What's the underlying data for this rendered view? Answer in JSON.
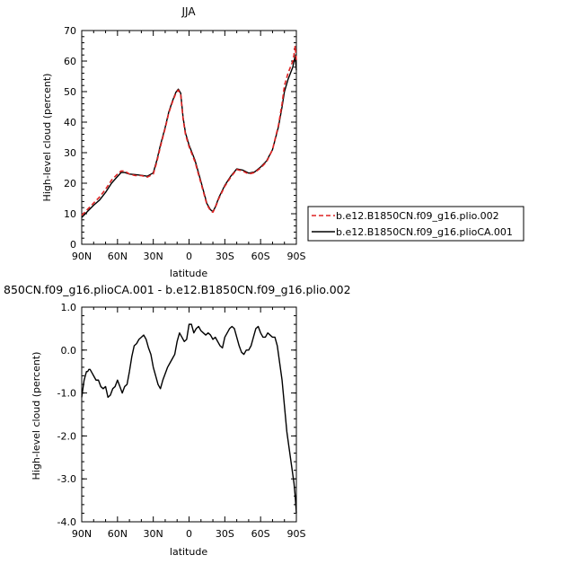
{
  "colors": {
    "control": "#dd2222",
    "experiment": "#000000",
    "axis": "#000000"
  },
  "chart_data": [
    {
      "type": "line",
      "title": "JJA",
      "xlabel": "latitude",
      "ylabel": "High-level cloud (percent)",
      "xlim": [
        90,
        -90
      ],
      "ylim": [
        0,
        70
      ],
      "x_ticks": [
        90,
        60,
        30,
        0,
        -30,
        -60,
        -90
      ],
      "x_tick_labels": [
        "90N",
        "60N",
        "30N",
        "0",
        "30S",
        "60S",
        "90S"
      ],
      "y_ticks": [
        0,
        10,
        20,
        30,
        40,
        50,
        60,
        70
      ],
      "y_tick_labels": [
        "0",
        "10",
        "20",
        "30",
        "40",
        "50",
        "60",
        "70"
      ],
      "legend_position": "right",
      "series": [
        {
          "name": "b.e12.B1850CN.f09_g16.plio.002",
          "style": "dashed",
          "x": [
            90,
            85,
            80,
            75,
            70,
            65,
            60,
            57,
            54,
            50,
            45,
            40,
            35,
            30,
            27,
            24,
            20,
            17,
            14,
            11,
            9,
            7,
            6,
            5,
            3,
            0,
            -5,
            -10,
            -15,
            -18,
            -20,
            -22,
            -25,
            -30,
            -35,
            -40,
            -45,
            -50,
            -55,
            -60,
            -65,
            -70,
            -75,
            -78,
            -80,
            -83,
            -85,
            -87,
            -88,
            -89,
            -90
          ],
          "y": [
            9.5,
            11.5,
            13.5,
            15.5,
            18.0,
            21.0,
            23.0,
            24.0,
            24.0,
            23.0,
            22.5,
            22.5,
            22.0,
            23.0,
            27.0,
            32.0,
            38.0,
            43.0,
            46.5,
            49.5,
            50.5,
            49.0,
            45.0,
            41.0,
            36.0,
            32.0,
            27.0,
            20.0,
            13.0,
            11.0,
            10.5,
            12.0,
            15.0,
            19.0,
            22.0,
            24.5,
            24.0,
            23.0,
            23.5,
            25.0,
            27.0,
            31.0,
            39.0,
            46.0,
            52.0,
            56.0,
            58.0,
            60.0,
            62.0,
            65.0,
            60.0
          ]
        },
        {
          "name": "b.e12.B1850CN.f09_g16.plioCA.001",
          "style": "solid",
          "x": [
            90,
            85,
            80,
            75,
            70,
            65,
            60,
            57,
            54,
            50,
            45,
            40,
            35,
            30,
            27,
            24,
            20,
            17,
            14,
            11,
            9,
            7,
            6,
            5,
            3,
            0,
            -5,
            -10,
            -15,
            -18,
            -20,
            -22,
            -25,
            -30,
            -35,
            -40,
            -45,
            -50,
            -55,
            -60,
            -65,
            -70,
            -75,
            -78,
            -80,
            -83,
            -85,
            -87,
            -88,
            -89,
            -90
          ],
          "y": [
            8.8,
            10.8,
            12.8,
            14.5,
            17.0,
            20.0,
            22.2,
            23.5,
            23.5,
            23.0,
            22.8,
            22.6,
            22.3,
            23.4,
            27.5,
            32.5,
            38.3,
            43.3,
            46.8,
            49.8,
            50.8,
            49.5,
            45.5,
            41.5,
            36.5,
            32.5,
            27.5,
            20.5,
            13.3,
            11.3,
            10.7,
            12.2,
            15.3,
            19.3,
            22.3,
            24.7,
            24.3,
            23.3,
            23.7,
            25.3,
            27.3,
            31.0,
            38.5,
            45.0,
            50.0,
            54.0,
            56.0,
            58.0,
            60.0,
            61.5,
            57.0
          ]
        }
      ]
    },
    {
      "type": "line",
      "title": "850CN.f09_g16.plioCA.001 - b.e12.B1850CN.f09_g16.plio.002",
      "xlabel": "latitude",
      "ylabel": "High-level cloud (percent)",
      "xlim": [
        90,
        -90
      ],
      "ylim": [
        -4.0,
        1.0
      ],
      "x_ticks": [
        90,
        60,
        30,
        0,
        -30,
        -60,
        -90
      ],
      "x_tick_labels": [
        "90N",
        "60N",
        "30N",
        "0",
        "30S",
        "60S",
        "90S"
      ],
      "y_ticks": [
        1.0,
        0.0,
        -1.0,
        -2.0,
        -3.0,
        -4.0
      ],
      "y_tick_labels": [
        "1.0",
        "0.0",
        "-1.0",
        "-2.0",
        "-3.0",
        "-4.0"
      ],
      "series": [
        {
          "style": "solid",
          "x": [
            90,
            89,
            88,
            87,
            86,
            85,
            84,
            83,
            82,
            81,
            80,
            78,
            76,
            74,
            72,
            70,
            68,
            66,
            64,
            62,
            60,
            58,
            56,
            54,
            52,
            50,
            48,
            46,
            44,
            42,
            40,
            38,
            36,
            34,
            32,
            30,
            28,
            26,
            24,
            22,
            20,
            18,
            16,
            14,
            12,
            10,
            8,
            6,
            4,
            2,
            0,
            -2,
            -4,
            -6,
            -8,
            -10,
            -12,
            -14,
            -16,
            -18,
            -20,
            -22,
            -24,
            -26,
            -28,
            -30,
            -32,
            -34,
            -36,
            -38,
            -40,
            -42,
            -44,
            -46,
            -48,
            -50,
            -52,
            -54,
            -56,
            -58,
            -60,
            -62,
            -64,
            -66,
            -68,
            -70,
            -72,
            -74,
            -76,
            -78,
            -80,
            -82,
            -84,
            -86,
            -87,
            -88,
            -89,
            -90
          ],
          "y": [
            -1.1,
            -0.9,
            -0.7,
            -0.6,
            -0.5,
            -0.5,
            -0.45,
            -0.45,
            -0.5,
            -0.55,
            -0.6,
            -0.7,
            -0.7,
            -0.85,
            -0.9,
            -0.85,
            -1.1,
            -1.05,
            -0.9,
            -0.85,
            -0.7,
            -0.85,
            -1.0,
            -0.85,
            -0.8,
            -0.5,
            -0.15,
            0.1,
            0.15,
            0.25,
            0.3,
            0.35,
            0.25,
            0.05,
            -0.1,
            -0.4,
            -0.6,
            -0.8,
            -0.9,
            -0.7,
            -0.55,
            -0.4,
            -0.3,
            -0.2,
            -0.1,
            0.2,
            0.4,
            0.3,
            0.2,
            0.25,
            0.6,
            0.6,
            0.4,
            0.5,
            0.55,
            0.45,
            0.4,
            0.35,
            0.4,
            0.35,
            0.25,
            0.3,
            0.2,
            0.1,
            0.05,
            0.3,
            0.4,
            0.5,
            0.55,
            0.5,
            0.3,
            0.1,
            -0.05,
            -0.1,
            0.0,
            0.0,
            0.1,
            0.3,
            0.5,
            0.55,
            0.4,
            0.3,
            0.3,
            0.4,
            0.35,
            0.3,
            0.3,
            0.1,
            -0.3,
            -0.7,
            -1.3,
            -1.9,
            -2.3,
            -2.7,
            -2.9,
            -3.1,
            -3.4,
            -3.8
          ]
        }
      ]
    }
  ]
}
